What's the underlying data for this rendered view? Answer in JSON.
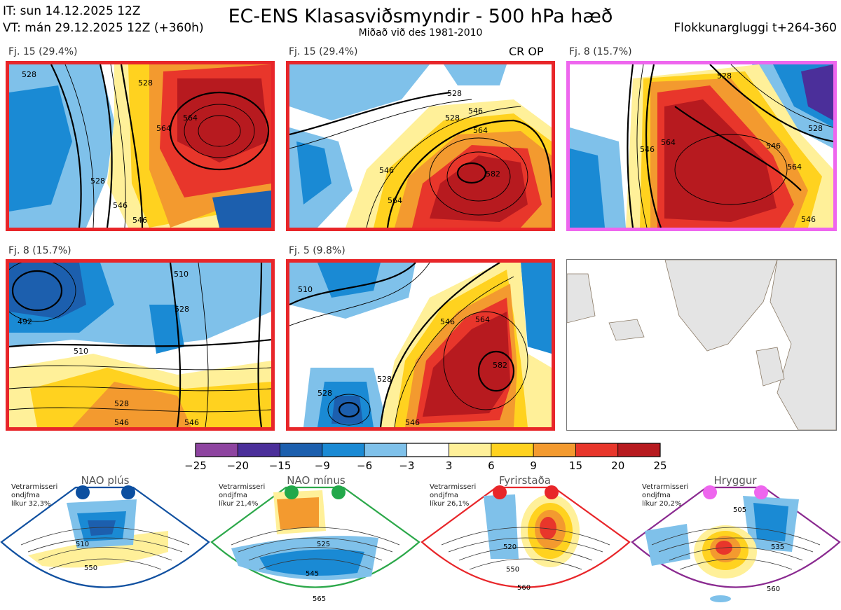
{
  "header": {
    "it_line": "IT: sun 14.12.2025 12Z",
    "vt_line": "VT: mán 29.12.2025 12Z  (+360h)",
    "title": "EC-ENS Klasasviðsmyndir - 500 hPa hæð",
    "subtitle": "Miðað við des 1981-2010",
    "window": "Flokkunargluggi t+264-360"
  },
  "panels": [
    {
      "label": "Fj. 15 (29.4%)",
      "regime": "Fyrirstaða",
      "border": "#e8262a",
      "contours": [
        "528",
        "546",
        "564",
        "546",
        "528",
        "564",
        "528"
      ]
    },
    {
      "label": "Fj. 15 (29.4%)",
      "regime": "Fyrirstaða",
      "border": "#e8262a",
      "extra": "CR OP",
      "contours": [
        "528",
        "546",
        "564",
        "546",
        "564",
        "582",
        "528"
      ]
    },
    {
      "label": "Fj. 8 (15.7%)",
      "regime": "Hryggur",
      "border": "#ee66ee",
      "contours": [
        "528",
        "546",
        "564",
        "528",
        "546",
        "564",
        "546"
      ]
    },
    {
      "label": "Fj. 8 (15.7%)",
      "regime": "Fyrirstaða",
      "border": "#e8262a",
      "contours": [
        "492",
        "510",
        "528",
        "528",
        "546",
        "546",
        "510"
      ]
    },
    {
      "label": "Fj. 5 (9.8%)",
      "regime": "Fyrirstaða",
      "border": "#e8262a",
      "contours": [
        "510",
        "528",
        "528",
        "546",
        "564",
        "582",
        "546"
      ]
    }
  ],
  "legend": {
    "ticks": [
      "−25",
      "−20",
      "−15",
      "−9",
      "−6",
      "−3",
      "3",
      "6",
      "9",
      "15",
      "20",
      "25"
    ],
    "colors": [
      "#8e44a0",
      "#4b2f9a",
      "#1c5fae",
      "#1a8ad4",
      "#7fc1ea",
      "#ffffff",
      "#fff099",
      "#ffd21f",
      "#f39a2f",
      "#e8362b",
      "#b71a1f"
    ]
  },
  "regimes": [
    {
      "name": "NAO plús",
      "info": [
        "Vetrarmisseri",
        "ondjfma",
        "líkur 32,3%"
      ],
      "color": "#1050a0",
      "dot": "#0c4fa0",
      "contours": [
        "510",
        "550"
      ]
    },
    {
      "name": "NAO mínus",
      "info": [
        "Vetrarmisseri",
        "ondjfma",
        "líkur 21,4%"
      ],
      "color": "#2ca84a",
      "dot": "#22a84a",
      "contours": [
        "525",
        "545",
        "565"
      ]
    },
    {
      "name": "Fyrirstaða",
      "info": [
        "Vetrarmisseri",
        "ondjfma",
        "líkur 26,1%"
      ],
      "color": "#e8262a",
      "dot": "#e8262a",
      "contours": [
        "520",
        "550",
        "560"
      ]
    },
    {
      "name": "Hryggur",
      "info": [
        "Vetrarmisseri",
        "ondjfma",
        "líkur 20,2%"
      ],
      "color": "#8a2a90",
      "dot": "#ee66ee",
      "contours": [
        "505",
        "535",
        "560"
      ]
    }
  ]
}
